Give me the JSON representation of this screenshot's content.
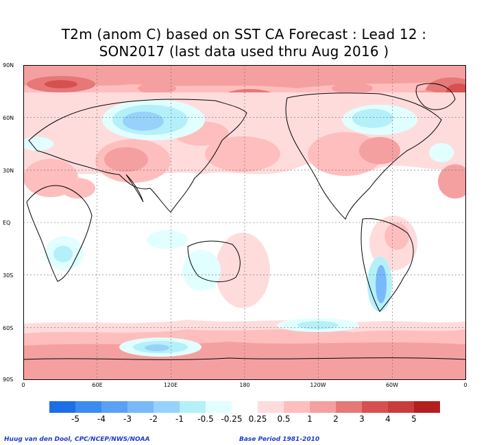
{
  "title_line1": "T2m (anom C) based on SST CA Forecast : Lead 12 :",
  "title_line2": "SON2017 (last data used thru Aug 2016 )",
  "lat_labels": [
    "90N",
    "60N",
    "30N",
    "EQ",
    "30S",
    "60S",
    "90S"
  ],
  "lon_labels": [
    "0",
    "60E",
    "120E",
    "180",
    "120W",
    "60W",
    "0"
  ],
  "legend_labels": [
    "-5",
    "-4",
    "-3",
    "-2",
    "-1",
    "-0.5",
    "-0.25",
    "0.25",
    "0.5",
    "1",
    "2",
    "3",
    "4",
    "5"
  ],
  "legend_colors": [
    "#1e6ee8",
    "#3c8cf0",
    "#5aa0f5",
    "#78b9fa",
    "#96d2fa",
    "#b4f0fa",
    "#e1ffff",
    "#ffffff",
    "#ffdcdc",
    "#ffbebe",
    "#f5a0a0",
    "#e67878",
    "#d75050",
    "#c83c3c",
    "#b41e1e"
  ],
  "footer_left": "Huug van den Dool, CPC/NCEP/NWS/NOAA",
  "footer_right": "Base Period 1981-2010"
}
